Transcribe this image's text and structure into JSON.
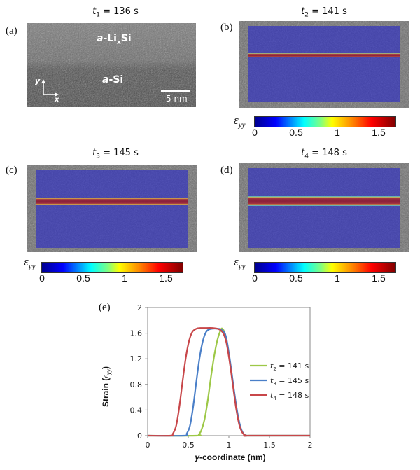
{
  "panels": [
    {
      "id": "a",
      "label": "(a)",
      "t_sym": "t",
      "t_sub": "1",
      "t_rest": " = 136 s",
      "image_labels": {
        "top_material_prefix": "a",
        "top_material_main": "-Li",
        "top_material_sub": "x",
        "top_material_suffix": "Si",
        "bottom_material_prefix": "a",
        "bottom_material_suffix": "-Si",
        "axis_y": "y",
        "axis_x": "x",
        "scale_bar": "5 nm"
      }
    },
    {
      "id": "b",
      "label": "(b)",
      "t_sym": "t",
      "t_sub": "2",
      "t_rest": " = 141 s"
    },
    {
      "id": "c",
      "label": "(c)",
      "t_sym": "t",
      "t_sub": "3",
      "t_rest": " = 145 s"
    },
    {
      "id": "d",
      "label": "(d)",
      "t_sym": "t",
      "t_sub": "4",
      "t_rest": " = 148 s"
    }
  ],
  "colorbar": {
    "label_main": "ε",
    "label_sub": "yy",
    "ticks": [
      "0",
      "0.5",
      "1",
      "1.5"
    ],
    "range": [
      0,
      1.7
    ],
    "colormap": "jet"
  },
  "chart_data": {
    "type": "line",
    "panel_label": "(e)",
    "title": "",
    "xlabel": "y-coordinate (nm)",
    "xlabel_italic_part": "y",
    "xlabel_rest": "-coordinate (nm)",
    "ylabel_main": "Strain (",
    "ylabel_sym": "ε",
    "ylabel_sub": "yy",
    "ylabel_close": ")",
    "xlim": [
      0,
      2
    ],
    "ylim": [
      0,
      2
    ],
    "xticks": [
      "0",
      "0.5",
      "1",
      "1.5",
      "2"
    ],
    "yticks": [
      "0",
      "0.4",
      "0.8",
      "1.2",
      "1.6",
      "2"
    ],
    "xtick_values": [
      0,
      0.5,
      1,
      1.5,
      2
    ],
    "ytick_values": [
      0,
      0.4,
      0.8,
      1.2,
      1.6,
      2
    ],
    "grid": false,
    "legend_position": "right",
    "series": [
      {
        "name": "t2 = 141 s",
        "t_sub": "2",
        "rest": " = 141 s",
        "color": "#9dc847",
        "x": [
          0,
          0.6,
          0.63,
          0.66,
          0.7,
          0.74,
          0.78,
          0.82,
          0.86,
          0.9,
          0.92,
          0.95,
          0.98,
          1.02,
          1.06,
          1.1,
          1.14,
          1.18,
          1.22,
          1.25,
          2
        ],
        "y": [
          0,
          0,
          0.02,
          0.08,
          0.25,
          0.55,
          0.92,
          1.25,
          1.5,
          1.65,
          1.67,
          1.6,
          1.42,
          1.1,
          0.72,
          0.38,
          0.14,
          0.03,
          0,
          0,
          0
        ]
      },
      {
        "name": "t3 = 145 s",
        "t_sub": "3",
        "rest": " = 145 s",
        "color": "#4a7fc8",
        "x": [
          0,
          0.45,
          0.48,
          0.52,
          0.56,
          0.6,
          0.64,
          0.68,
          0.72,
          0.76,
          0.8,
          0.85,
          0.9,
          0.95,
          0.98,
          1.02,
          1.06,
          1.1,
          1.14,
          1.18,
          1.22,
          1.25,
          2
        ],
        "y": [
          0,
          0,
          0.03,
          0.15,
          0.45,
          0.85,
          1.22,
          1.48,
          1.62,
          1.66,
          1.67,
          1.67,
          1.66,
          1.6,
          1.45,
          1.12,
          0.74,
          0.4,
          0.15,
          0.03,
          0,
          0,
          0
        ]
      },
      {
        "name": "t4 = 148 s",
        "t_sub": "4",
        "rest": " = 148 s",
        "color": "#c8474a",
        "x": [
          0,
          0.28,
          0.31,
          0.35,
          0.39,
          0.43,
          0.47,
          0.51,
          0.55,
          0.6,
          0.65,
          0.7,
          0.8,
          0.88,
          0.93,
          0.97,
          1.01,
          1.05,
          1.09,
          1.13,
          1.17,
          1.21,
          1.25,
          2
        ],
        "y": [
          0,
          0,
          0.03,
          0.15,
          0.45,
          0.85,
          1.22,
          1.48,
          1.62,
          1.67,
          1.68,
          1.68,
          1.68,
          1.66,
          1.6,
          1.45,
          1.15,
          0.78,
          0.42,
          0.16,
          0.04,
          0,
          0,
          0
        ]
      }
    ]
  }
}
